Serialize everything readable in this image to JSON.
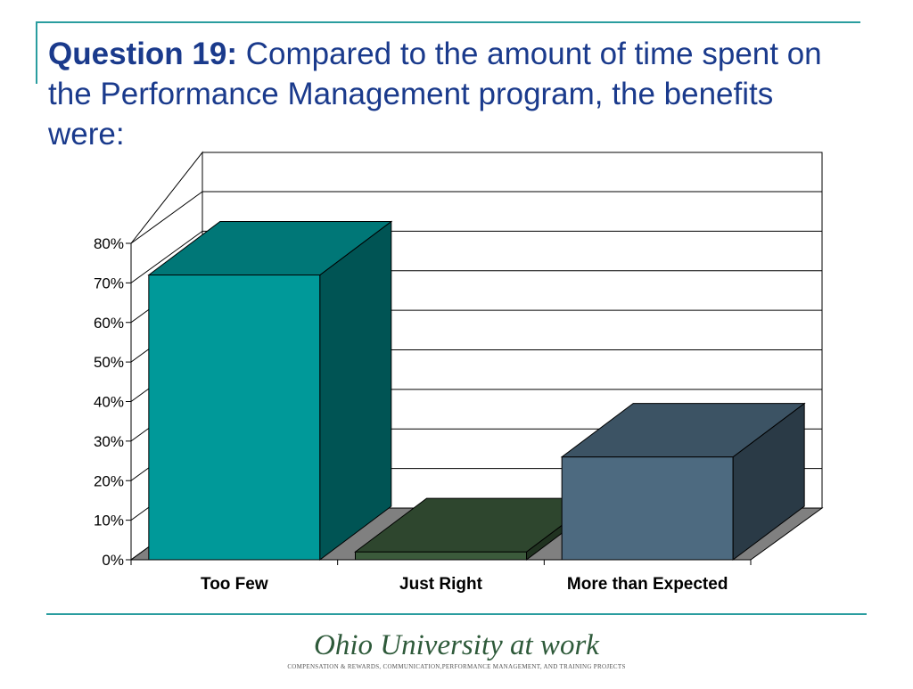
{
  "slide": {
    "title_bold": "Question 19:",
    "title_rest": " Compared to the amount of time spent on the Performance Management program, the benefits were:"
  },
  "chart_data": {
    "type": "bar",
    "categories": [
      "Too Few",
      "Just Right",
      "More than Expected"
    ],
    "values": [
      72,
      2,
      26
    ],
    "ylim": [
      0,
      80
    ],
    "yticks": [
      "0%",
      "10%",
      "20%",
      "30%",
      "40%",
      "50%",
      "60%",
      "70%",
      "80%"
    ],
    "grid": true,
    "three_d": true,
    "colors": [
      "#009999",
      "#3b5a3b",
      "#4d6a80"
    ]
  },
  "footer": {
    "logo_text": "Ohio University at work",
    "subtitle": "Compensation & Rewards, Communication,Performance Management, and Training Projects"
  }
}
